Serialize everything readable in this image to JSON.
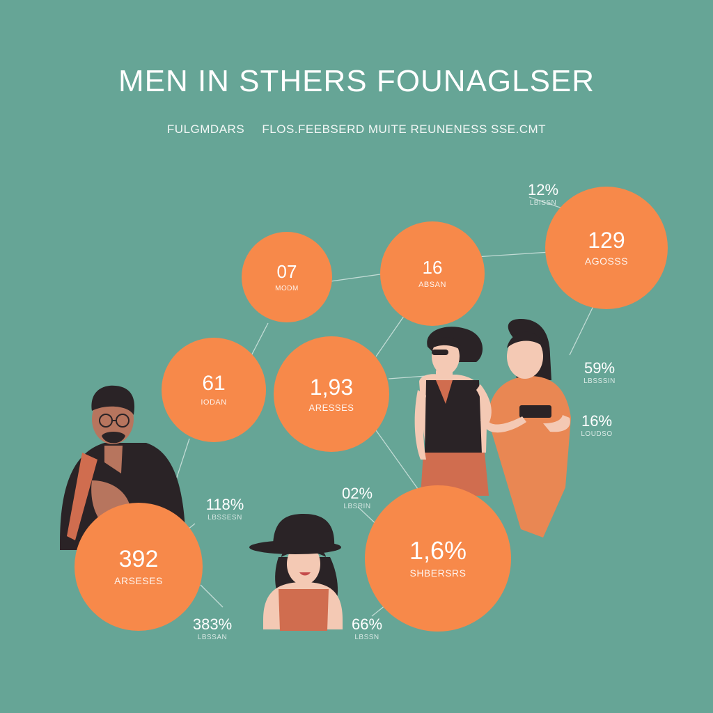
{
  "header": {
    "title": "MEN IN STHERS FOUNAGLSER",
    "subtitle_left": "FULGMDARS",
    "subtitle_right": "FLOS.FEEBSERD MUITE REUNENESS SSE.CMT"
  },
  "bubbles": [
    {
      "value": "07",
      "label": "MODM"
    },
    {
      "value": "16",
      "label": "ABSAN"
    },
    {
      "value": "129",
      "label": "AGOSSS"
    },
    {
      "value": "61",
      "label": "IODAN"
    },
    {
      "value": "1,93",
      "label": "ARESSES"
    },
    {
      "value": "392",
      "label": "ARSESES"
    },
    {
      "value": "1,6%",
      "label": "SHBERSRS"
    }
  ],
  "annotations": [
    {
      "value": "12%",
      "label": "LBISSN"
    },
    {
      "value": "59%",
      "label": "LBSSSIN"
    },
    {
      "value": "16%",
      "label": "LOUDSO"
    },
    {
      "value": "118%",
      "label": "LBSSESN"
    },
    {
      "value": "02%",
      "label": "LBSRIN"
    },
    {
      "value": "383%",
      "label": "LBSSAN"
    },
    {
      "value": "66%",
      "label": "LBSSN"
    }
  ],
  "colors": {
    "background": "#66a596",
    "bubble": "#f7894a",
    "figure_dark": "#2a2326",
    "figure_orange": "#e98753",
    "figure_brown": "#d06d4f",
    "skin_light": "#f4c9b4",
    "skin_dark": "#b7755e"
  },
  "figures": [
    "man-figure",
    "woman-hat-figure",
    "woman-sunglasses-figure",
    "woman-phone-figure"
  ]
}
